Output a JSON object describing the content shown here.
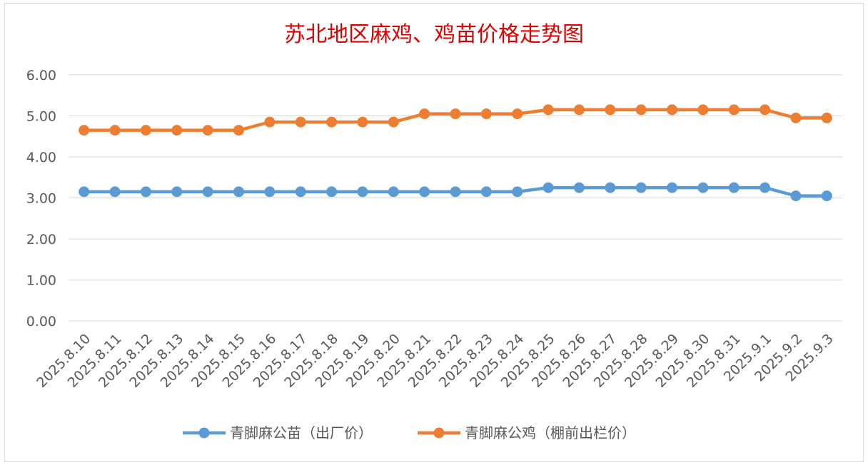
{
  "chart_data": {
    "type": "line",
    "title": "苏北地区麻鸡、鸡苗价格走势图",
    "xlabel": "",
    "ylabel": "",
    "categories": [
      "2025.8.10",
      "2025.8.11",
      "2025.8.12",
      "2025.8.13",
      "2025.8.14",
      "2025.8.15",
      "2025.8.16",
      "2025.8.17",
      "2025.8.18",
      "2025.8.19",
      "2025.8.20",
      "2025.8.21",
      "2025.8.22",
      "2025.8.23",
      "2025.8.24",
      "2025.8.25",
      "2025.8.26",
      "2025.8.27",
      "2025.8.28",
      "2025.8.29",
      "2025.8.30",
      "2025.8.31",
      "2025.9.1",
      "2025.9.2",
      "2025.9.3"
    ],
    "yticks": [
      "0.00",
      "1.00",
      "2.00",
      "3.00",
      "4.00",
      "5.00",
      "6.00"
    ],
    "ylim": [
      0,
      6
    ],
    "grid": true,
    "legend_position": "bottom",
    "series": [
      {
        "name": "青脚麻公苗（出厂价）",
        "color": "#5b9bd5",
        "values": [
          3.15,
          3.15,
          3.15,
          3.15,
          3.15,
          3.15,
          3.15,
          3.15,
          3.15,
          3.15,
          3.15,
          3.15,
          3.15,
          3.15,
          3.15,
          3.25,
          3.25,
          3.25,
          3.25,
          3.25,
          3.25,
          3.25,
          3.25,
          3.05,
          3.05
        ]
      },
      {
        "name": "青脚麻公鸡（棚前出栏价）",
        "color": "#ed7d31",
        "values": [
          4.65,
          4.65,
          4.65,
          4.65,
          4.65,
          4.65,
          4.85,
          4.85,
          4.85,
          4.85,
          4.85,
          5.05,
          5.05,
          5.05,
          5.05,
          5.15,
          5.15,
          5.15,
          5.15,
          5.15,
          5.15,
          5.15,
          5.15,
          4.95,
          4.95
        ]
      }
    ]
  }
}
